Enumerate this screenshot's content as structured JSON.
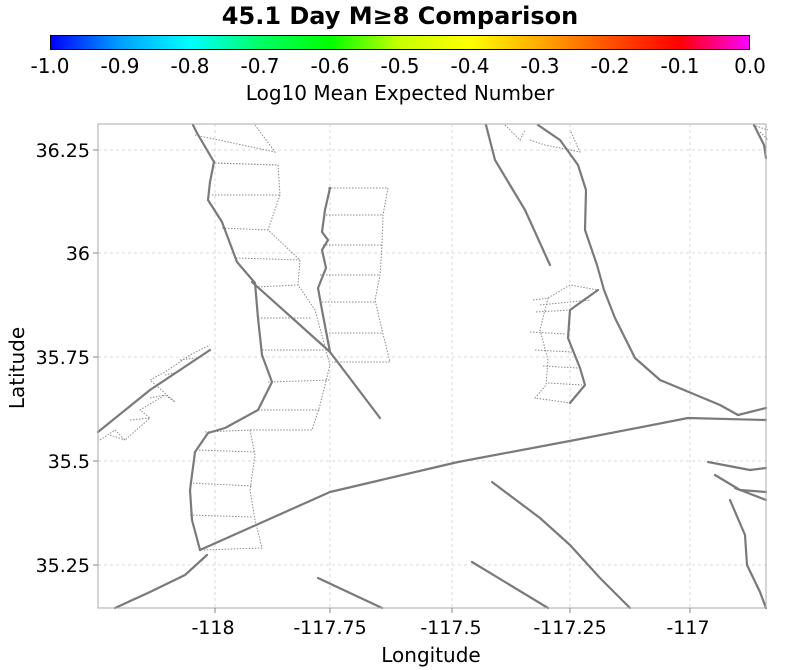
{
  "title": "45.1 Day M≥8 Comparison",
  "colorbar": {
    "label": "Log10 Mean Expected Number",
    "ticks": [
      "-1.0",
      "-0.9",
      "-0.8",
      "-0.7",
      "-0.6",
      "-0.5",
      "-0.4",
      "-0.3",
      "-0.2",
      "-0.1",
      "0.0"
    ],
    "range": [
      -1.0,
      0.0
    ],
    "gradient": [
      "#0000ff",
      "#00a0ff",
      "#00ffff",
      "#00ff66",
      "#00ff00",
      "#c8ff00",
      "#ffff00",
      "#ffaa00",
      "#ff5000",
      "#ff0000",
      "#ff00ff"
    ]
  },
  "map": {
    "xlabel": "Longitude",
    "ylabel": "Latitude",
    "xlim": [
      -118.255,
      -116.845
    ],
    "ylim": [
      35.14,
      36.31
    ],
    "x_ticks": [
      -118,
      -117.75,
      -117.5,
      -117.25,
      -117
    ],
    "x_tick_labels": [
      "-118",
      "-117.75",
      "-117.5",
      "-117.25",
      "-117"
    ],
    "y_ticks": [
      36.25,
      36,
      35.75,
      35.5,
      35.25
    ],
    "y_tick_labels": [
      "36.25",
      "36",
      "35.75",
      "35.5",
      "35.25"
    ],
    "grid": true,
    "fault_color": "#7a7a7a"
  }
}
